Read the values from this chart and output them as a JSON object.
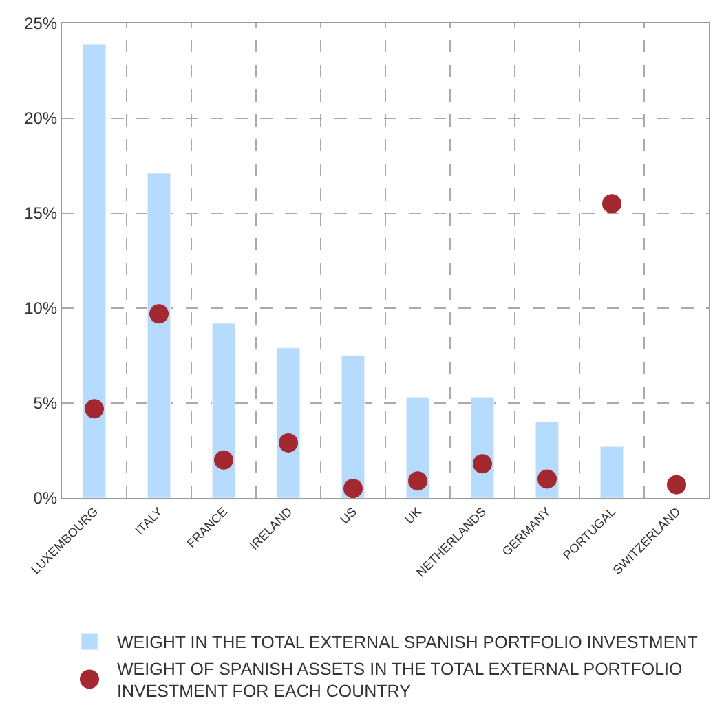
{
  "chart_data": {
    "type": "bar",
    "categories": [
      "LUXEMBOURG",
      "ITALY",
      "FRANCE",
      "IRELAND",
      "US",
      "UK",
      "NETHERLANDS",
      "GERMANY",
      "PORTUGAL",
      "SWITZERLAND"
    ],
    "series": [
      {
        "name": "WEIGHT IN THE TOTAL EXTERNAL SPANISH PORTFOLIO INVESTMENT",
        "color": "#b5dbff",
        "values": [
          23.9,
          17.1,
          9.2,
          7.9,
          7.5,
          5.3,
          5.3,
          4.0,
          2.7,
          null
        ]
      },
      {
        "name": "WEIGHT OF SPANISH ASSETS IN THE TOTAL EXTERNAL PORTFOLIO INVESTMENT FOR EACH COUNTRY",
        "type": "scatter",
        "color": "#a3282f",
        "marker": "circle",
        "values": [
          4.7,
          9.7,
          2.0,
          2.9,
          0.5,
          0.9,
          1.8,
          1.0,
          15.5,
          0.7
        ]
      }
    ],
    "ylim": [
      0,
      25
    ],
    "yticks": [
      {
        "value": 0,
        "label": "0%"
      },
      {
        "value": 5,
        "label": "5%"
      },
      {
        "value": 10,
        "label": "10%"
      },
      {
        "value": 15,
        "label": "15%"
      },
      {
        "value": 20,
        "label": "20%"
      },
      {
        "value": 25,
        "label": "25%"
      }
    ],
    "grid": true,
    "legend": "bottom"
  }
}
